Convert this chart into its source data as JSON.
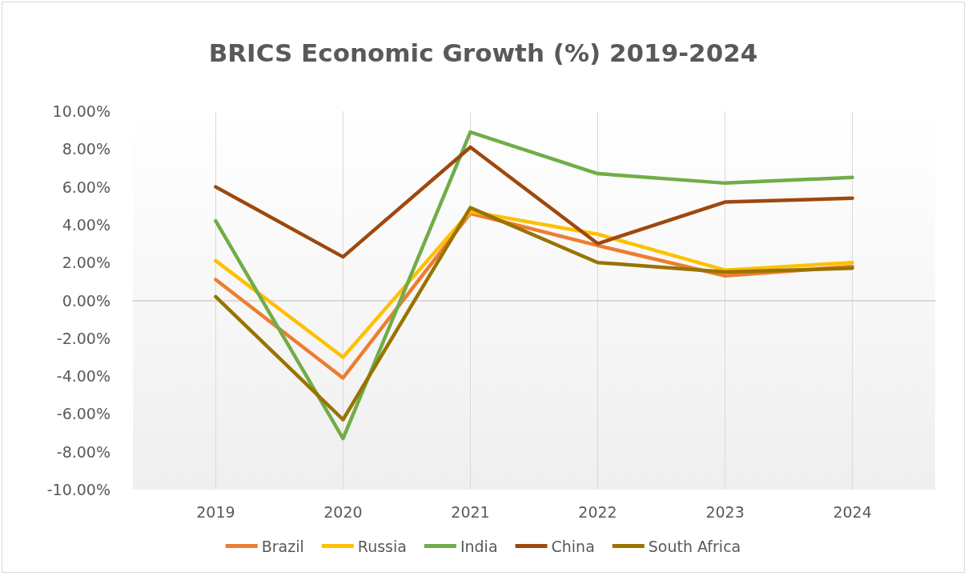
{
  "chart_data": {
    "type": "line",
    "title": "BRICS Economic Growth (%) 2019-2024",
    "categories": [
      "2019",
      "2020",
      "2021",
      "2022",
      "2023",
      "2024"
    ],
    "series": [
      {
        "name": "Brazil",
        "color": "#ed7d31",
        "values": [
          1.1,
          -4.1,
          4.6,
          2.9,
          1.3,
          1.8
        ]
      },
      {
        "name": "Russia",
        "color": "#ffc000",
        "values": [
          2.1,
          -3.0,
          4.7,
          3.5,
          1.6,
          2.0
        ]
      },
      {
        "name": "India",
        "color": "#70ad47",
        "values": [
          4.2,
          -7.3,
          8.9,
          6.7,
          6.2,
          6.5
        ]
      },
      {
        "name": "China",
        "color": "#9e480e",
        "values": [
          6.0,
          2.3,
          8.1,
          3.0,
          5.2,
          5.4
        ]
      },
      {
        "name": "South Africa",
        "color": "#997300",
        "values": [
          0.2,
          -6.3,
          4.9,
          2.0,
          1.5,
          1.7
        ]
      }
    ],
    "ylim": [
      -10,
      10
    ],
    "yticks": [
      {
        "value": -10,
        "label": "-10.00%"
      },
      {
        "value": -8,
        "label": "-8.00%"
      },
      {
        "value": -6,
        "label": "-6.00%"
      },
      {
        "value": -4,
        "label": "-4.00%"
      },
      {
        "value": -2,
        "label": "-2.00%"
      },
      {
        "value": 0,
        "label": "0.00%"
      },
      {
        "value": 2,
        "label": "2.00%"
      },
      {
        "value": 4,
        "label": "4.00%"
      },
      {
        "value": 6,
        "label": "6.00%"
      },
      {
        "value": 8,
        "label": "8.00%"
      },
      {
        "value": 10,
        "label": "10.00%"
      }
    ],
    "grid": "x",
    "legend": "bottom",
    "marker": "none",
    "line_style": "solid"
  }
}
